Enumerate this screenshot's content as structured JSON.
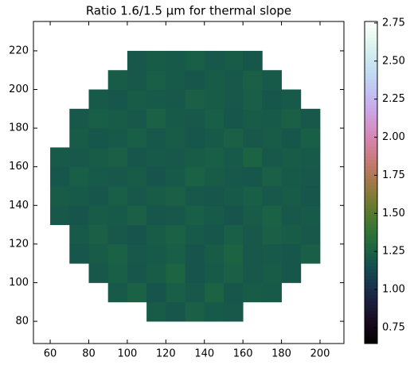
{
  "chart_data": {
    "type": "heatmap",
    "title": "Ratio 1.6/1.5 µm for thermal slope",
    "colormap": "cubehelix",
    "xbins": [
      60,
      70,
      80,
      90,
      100,
      110,
      120,
      130,
      140,
      150,
      160,
      170,
      180,
      190,
      200,
      210
    ],
    "ybins": [
      80,
      90,
      100,
      110,
      120,
      130,
      140,
      150,
      160,
      170,
      180,
      190,
      200,
      210,
      220
    ],
    "z": [
      [
        null,
        null,
        null,
        null,
        null,
        1.22,
        1.19,
        1.24,
        1.21,
        1.2,
        null,
        null,
        null,
        null,
        null
      ],
      [
        null,
        null,
        null,
        1.21,
        1.25,
        1.18,
        1.23,
        1.2,
        1.26,
        1.19,
        1.22,
        1.21,
        null,
        null,
        null
      ],
      [
        null,
        null,
        1.2,
        1.23,
        1.19,
        1.22,
        1.27,
        1.18,
        1.21,
        1.24,
        1.2,
        1.22,
        1.19,
        null,
        null
      ],
      [
        null,
        1.19,
        1.22,
        1.25,
        1.2,
        1.21,
        1.23,
        1.18,
        1.22,
        1.26,
        1.2,
        1.21,
        1.19,
        1.23,
        null
      ],
      [
        null,
        1.21,
        1.24,
        1.2,
        1.18,
        1.22,
        1.25,
        1.21,
        1.19,
        1.23,
        1.2,
        1.24,
        1.22,
        1.2,
        null
      ],
      [
        1.2,
        1.18,
        1.22,
        1.21,
        1.24,
        1.19,
        1.2,
        1.23,
        1.21,
        1.18,
        1.22,
        1.25,
        1.2,
        1.21,
        null
      ],
      [
        1.22,
        1.21,
        1.19,
        1.23,
        1.2,
        1.22,
        1.24,
        1.2,
        1.19,
        1.21,
        1.23,
        1.2,
        1.22,
        1.19,
        null
      ],
      [
        1.19,
        1.23,
        1.21,
        1.2,
        1.22,
        1.18,
        1.21,
        1.25,
        1.22,
        1.2,
        1.19,
        1.24,
        1.21,
        1.2,
        null
      ],
      [
        1.21,
        1.2,
        1.22,
        1.24,
        1.19,
        1.21,
        1.2,
        1.22,
        1.23,
        1.21,
        1.26,
        1.2,
        1.22,
        1.21,
        null
      ],
      [
        null,
        1.22,
        1.19,
        1.21,
        1.23,
        1.2,
        1.22,
        1.19,
        1.21,
        1.24,
        1.2,
        1.22,
        1.19,
        1.23,
        null
      ],
      [
        null,
        1.2,
        1.23,
        1.22,
        1.2,
        1.25,
        1.21,
        1.2,
        1.23,
        1.19,
        1.22,
        1.21,
        1.24,
        1.2,
        null
      ],
      [
        null,
        null,
        1.21,
        1.19,
        1.22,
        1.21,
        1.2,
        1.24,
        1.22,
        1.2,
        1.23,
        1.19,
        1.21,
        null,
        null
      ],
      [
        null,
        null,
        null,
        1.22,
        1.2,
        1.23,
        1.21,
        1.19,
        1.22,
        1.2,
        1.24,
        1.21,
        null,
        null,
        null
      ],
      [
        null,
        null,
        null,
        null,
        1.2,
        1.22,
        1.21,
        1.23,
        1.2,
        1.22,
        1.19,
        null,
        null,
        null,
        null
      ]
    ],
    "xlim": [
      51.3,
      212.4
    ],
    "ylim": [
      68.5,
      235.2
    ],
    "xticks": [
      60,
      80,
      100,
      120,
      140,
      160,
      180,
      200
    ],
    "yticks": [
      80,
      100,
      120,
      140,
      160,
      180,
      200,
      220
    ],
    "clim": [
      0.645,
      2.76
    ],
    "cticks": [
      {
        "value": 0.75,
        "label": "0.75"
      },
      {
        "value": 1.0,
        "label": "1.00"
      },
      {
        "value": 1.25,
        "label": "1.25"
      },
      {
        "value": 1.5,
        "label": "1.50"
      },
      {
        "value": 1.75,
        "label": "1.75"
      },
      {
        "value": 2.0,
        "label": "2.00"
      },
      {
        "value": 2.25,
        "label": "2.25"
      },
      {
        "value": 2.5,
        "label": "2.50"
      },
      {
        "value": 2.75,
        "label": "2.75"
      }
    ]
  }
}
